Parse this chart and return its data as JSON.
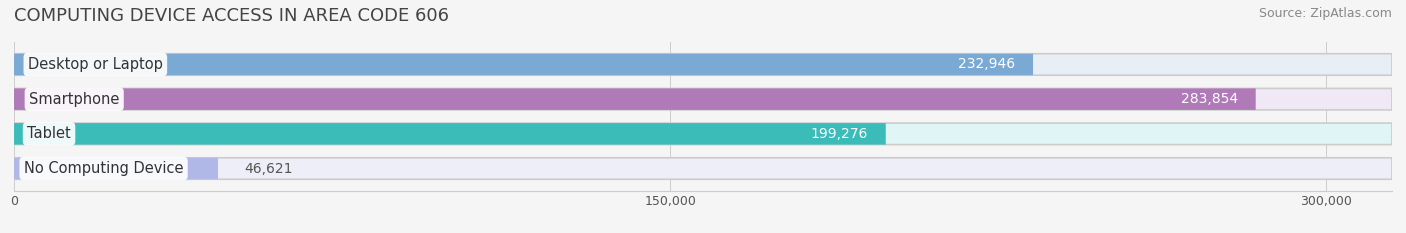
{
  "title": "COMPUTING DEVICE ACCESS IN AREA CODE 606",
  "source": "Source: ZipAtlas.com",
  "categories": [
    "Desktop or Laptop",
    "Smartphone",
    "Tablet",
    "No Computing Device"
  ],
  "values": [
    232946,
    283854,
    199276,
    46621
  ],
  "bar_colors": [
    "#7aaad4",
    "#b07ab8",
    "#3bbcb8",
    "#b0b8e8"
  ],
  "bar_bg_colors": [
    "#e8eef5",
    "#f0e8f5",
    "#e0f5f5",
    "#eeeef8"
  ],
  "label_colors": [
    "#ffffff",
    "#ffffff",
    "#ffffff",
    "#555555"
  ],
  "xlim": [
    0,
    315000
  ],
  "xticks": [
    0,
    150000,
    300000
  ],
  "xticklabels": [
    "0",
    "150,000",
    "300,000"
  ],
  "bar_height": 0.62,
  "title_fontsize": 13,
  "label_fontsize": 10.5,
  "value_fontsize": 10,
  "source_fontsize": 9,
  "background_color": "#f5f5f5",
  "fig_width": 14.06,
  "fig_height": 2.33
}
